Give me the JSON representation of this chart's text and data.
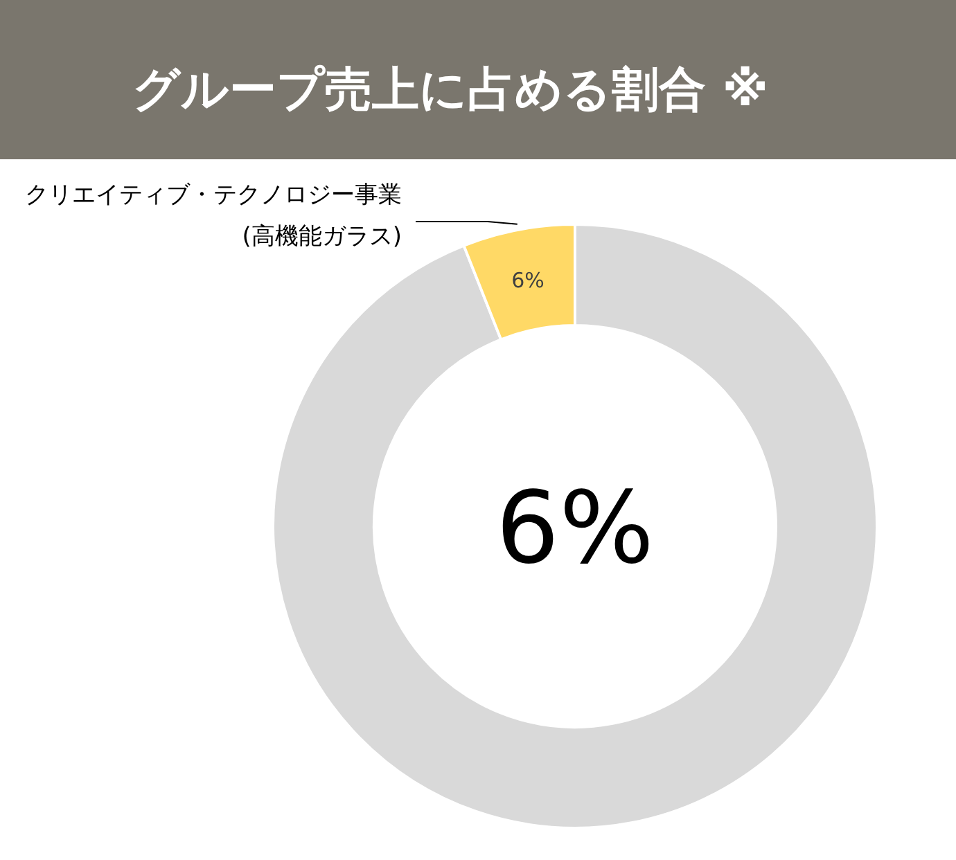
{
  "chart_data": {
    "type": "donut",
    "title": "グループ売上に占める割合 ※",
    "categories": [
      null,
      "クリエイティブ・テクノロジー事業\n(高機能ガラス)"
    ],
    "values": [
      94,
      6
    ],
    "colors": [
      "#d9d9d9",
      "#ffd966"
    ],
    "value_labels": [
      null,
      "6%"
    ],
    "annotations": [
      "6%"
    ]
  }
}
